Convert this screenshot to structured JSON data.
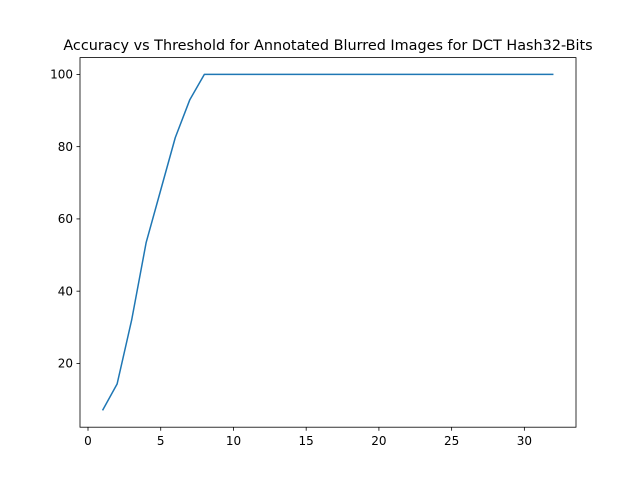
{
  "chart_data": {
    "type": "line",
    "title": "Accuracy vs Threshold for Annotated Blurred Images for DCT Hash32-Bits",
    "xlabel": "",
    "ylabel": "",
    "xlim": [
      -0.55,
      33.55
    ],
    "ylim": [
      2.35,
      104.65
    ],
    "grid": false,
    "x_ticks": [
      0,
      5,
      10,
      15,
      20,
      25,
      30
    ],
    "x_tick_labels": [
      "0",
      "5",
      "10",
      "15",
      "20",
      "25",
      "30"
    ],
    "y_ticks": [
      20,
      40,
      60,
      80,
      100
    ],
    "y_tick_labels": [
      "20",
      "40",
      "60",
      "80",
      "100"
    ],
    "series": [
      {
        "color": "#1f77b4",
        "x": [
          1,
          2,
          3,
          4,
          5,
          6,
          7,
          8,
          9,
          10,
          11,
          12,
          13,
          14,
          15,
          16,
          17,
          18,
          19,
          20,
          21,
          22,
          23,
          24,
          25,
          26,
          27,
          28,
          29,
          30,
          31,
          32
        ],
        "values": [
          7,
          14.3,
          32,
          53.5,
          68,
          82.5,
          93,
          100,
          100,
          100,
          100,
          100,
          100,
          100,
          100,
          100,
          100,
          100,
          100,
          100,
          100,
          100,
          100,
          100,
          100,
          100,
          100,
          100,
          100,
          100,
          100,
          100
        ]
      }
    ]
  }
}
